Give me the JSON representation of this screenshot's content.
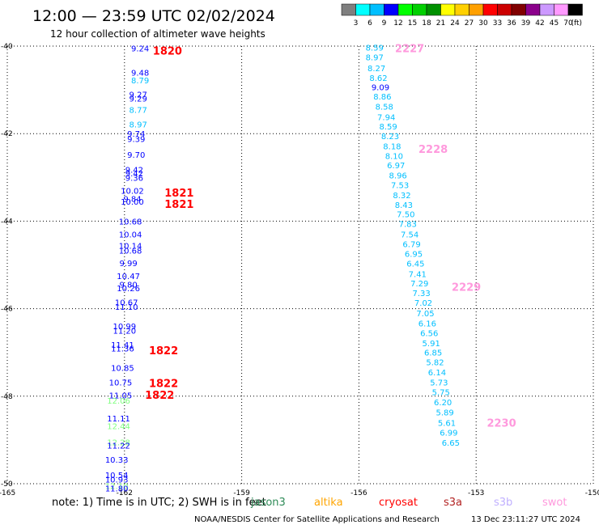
{
  "header": {
    "title": "12:00 — 23:59 UTC 02/02/2024",
    "subtitle": "12 hour collection of altimeter wave heights"
  },
  "colorbar": {
    "colors": [
      "#7f7f7f",
      "#00ffff",
      "#00bfff",
      "#0000ff",
      "#00ff00",
      "#00d000",
      "#009000",
      "#ffff00",
      "#ffd000",
      "#ffa000",
      "#ff0000",
      "#cc0000",
      "#800000",
      "#8b008b",
      "#cc99ff",
      "#ff99ff",
      "#000000"
    ],
    "labels": [
      "3",
      "6",
      "9",
      "12",
      "15",
      "18",
      "21",
      "24",
      "27",
      "30",
      "33",
      "36",
      "39",
      "42",
      "45",
      "70"
    ],
    "unit": "(ft)"
  },
  "footer": {
    "note": "note: 1) Time is in UTC; 2) SWH is in feet",
    "credit": "NOAA/NESDIS Center for Satellite Applications and Research",
    "timestamp": "13 Dec 23:11:27 UTC 2024",
    "legend": [
      {
        "label": "jason3",
        "color": "#2e8b57"
      },
      {
        "label": "altika",
        "color": "#ffa500"
      },
      {
        "label": "cryosat",
        "color": "#ff0000"
      },
      {
        "label": "s3a",
        "color": "#b22222"
      },
      {
        "label": "s3b",
        "color": "#c0b0ff"
      },
      {
        "label": "swot",
        "color": "#ff99dd"
      }
    ]
  },
  "chart_data": {
    "type": "scatter",
    "xlabel": "",
    "ylabel": "",
    "xlim": [
      -165,
      -150
    ],
    "ylim": [
      -50,
      -40
    ],
    "x_ticks": [
      {
        "value": -165,
        "label": "-165"
      },
      {
        "value": -162,
        "label": "-162"
      },
      {
        "value": -159,
        "label": "-159"
      },
      {
        "value": -156,
        "label": "-156"
      },
      {
        "value": -153,
        "label": "-153"
      },
      {
        "value": -150,
        "label": "-150"
      }
    ],
    "y_ticks": [
      {
        "value": -40,
        "label": "-40"
      },
      {
        "value": -42,
        "label": "-42"
      },
      {
        "value": -44,
        "label": "-44"
      },
      {
        "value": -46,
        "label": "-46"
      },
      {
        "value": -48,
        "label": "-48"
      },
      {
        "value": -50,
        "label": "-50"
      }
    ],
    "grid": true,
    "series": [
      {
        "name": "left track",
        "points": [
          {
            "lon": -161.6,
            "lat": -40.05,
            "swh": "9.24",
            "color": "#0000ff"
          },
          {
            "lon": -161.6,
            "lat": -40.6,
            "swh": "9.48",
            "color": "#0000ff"
          },
          {
            "lon": -161.6,
            "lat": -40.78,
            "swh": "8.79",
            "color": "#00bfff"
          },
          {
            "lon": -161.65,
            "lat": -41.1,
            "swh": "9.27",
            "color": "#0000ff"
          },
          {
            "lon": -161.65,
            "lat": -41.19,
            "swh": "9.29",
            "color": "#0000ff"
          },
          {
            "lon": -161.65,
            "lat": -41.45,
            "swh": "8.77",
            "color": "#00bfff"
          },
          {
            "lon": -161.65,
            "lat": -41.78,
            "swh": "8.97",
            "color": "#00bfff"
          },
          {
            "lon": -161.7,
            "lat": -42.0,
            "swh": "9.74",
            "color": "#0000ff"
          },
          {
            "lon": -161.7,
            "lat": -42.12,
            "swh": "9.39",
            "color": "#0000ff"
          },
          {
            "lon": -161.7,
            "lat": -42.48,
            "swh": "9.70",
            "color": "#0000ff"
          },
          {
            "lon": -161.75,
            "lat": -42.82,
            "swh": "9.42",
            "color": "#0000ff"
          },
          {
            "lon": -161.75,
            "lat": -42.9,
            "swh": "9.42",
            "color": "#0000ff"
          },
          {
            "lon": -161.75,
            "lat": -43.0,
            "swh": "9.36",
            "color": "#0000ff"
          },
          {
            "lon": -161.8,
            "lat": -43.3,
            "swh": "10.02",
            "color": "#0000ff"
          },
          {
            "lon": -161.8,
            "lat": -43.55,
            "swh": "10.00",
            "color": "#0000ff"
          },
          {
            "lon": -161.8,
            "lat": -43.48,
            "swh": "9.84",
            "color": "#0000ff"
          },
          {
            "lon": -161.85,
            "lat": -44.0,
            "swh": "10.68",
            "color": "#0000ff"
          },
          {
            "lon": -161.85,
            "lat": -44.3,
            "swh": "10.04",
            "color": "#0000ff"
          },
          {
            "lon": -161.85,
            "lat": -44.56,
            "swh": "10.14",
            "color": "#0000ff"
          },
          {
            "lon": -161.85,
            "lat": -44.67,
            "swh": "10.68",
            "color": "#0000ff"
          },
          {
            "lon": -161.9,
            "lat": -44.95,
            "swh": "9.99",
            "color": "#0000ff"
          },
          {
            "lon": -161.9,
            "lat": -45.25,
            "swh": "10.47",
            "color": "#0000ff"
          },
          {
            "lon": -161.9,
            "lat": -45.44,
            "swh": "9.80",
            "color": "#0000ff"
          },
          {
            "lon": -161.9,
            "lat": -45.53,
            "swh": "10.26",
            "color": "#0000ff"
          },
          {
            "lon": -161.95,
            "lat": -45.85,
            "swh": "10.67",
            "color": "#0000ff"
          },
          {
            "lon": -161.95,
            "lat": -45.95,
            "swh": "11.10",
            "color": "#0000ff"
          },
          {
            "lon": -162.0,
            "lat": -46.4,
            "swh": "10.99",
            "color": "#0000ff"
          },
          {
            "lon": -162.0,
            "lat": -46.5,
            "swh": "11.20",
            "color": "#0000ff"
          },
          {
            "lon": -162.05,
            "lat": -46.82,
            "swh": "11.41",
            "color": "#0000ff"
          },
          {
            "lon": -162.05,
            "lat": -46.9,
            "swh": "11.36",
            "color": "#0000ff"
          },
          {
            "lon": -162.05,
            "lat": -47.35,
            "swh": "10.85",
            "color": "#0000ff"
          },
          {
            "lon": -162.1,
            "lat": -47.68,
            "swh": "10.75",
            "color": "#0000ff"
          },
          {
            "lon": -162.1,
            "lat": -47.98,
            "swh": "11.05",
            "color": "#0000ff"
          },
          {
            "lon": -162.15,
            "lat": -48.1,
            "swh": "12.06",
            "color": "#80ff80"
          },
          {
            "lon": -162.15,
            "lat": -48.5,
            "swh": "11.11",
            "color": "#0000ff"
          },
          {
            "lon": -162.15,
            "lat": -48.68,
            "swh": "12.44",
            "color": "#80ff80"
          },
          {
            "lon": -162.15,
            "lat": -49.05,
            "swh": "12.28",
            "color": "#80ff80"
          },
          {
            "lon": -162.15,
            "lat": -49.12,
            "swh": "11.22",
            "color": "#0000ff"
          },
          {
            "lon": -162.2,
            "lat": -49.45,
            "swh": "10.33",
            "color": "#0000ff"
          },
          {
            "lon": -162.2,
            "lat": -49.8,
            "swh": "10.54",
            "color": "#0000ff"
          },
          {
            "lon": -162.2,
            "lat": -49.9,
            "swh": "10.93",
            "color": "#0000ff"
          },
          {
            "lon": -162.2,
            "lat": -50.05,
            "swh": "12.10",
            "color": "#80ff80"
          },
          {
            "lon": -162.2,
            "lat": -50.1,
            "swh": "11.80",
            "color": "#0000ff"
          }
        ]
      },
      {
        "name": "right track",
        "points": [
          {
            "lon": -155.6,
            "lat": -40.03,
            "swh": "8.59",
            "color": "#00bfff"
          },
          {
            "lon": -155.6,
            "lat": -40.25,
            "swh": "8.97",
            "color": "#00bfff"
          },
          {
            "lon": -155.55,
            "lat": -40.5,
            "swh": "8.27",
            "color": "#00bfff"
          },
          {
            "lon": -155.5,
            "lat": -40.72,
            "swh": "8.62",
            "color": "#00bfff"
          },
          {
            "lon": -155.45,
            "lat": -40.93,
            "swh": "9.09",
            "color": "#0000ff"
          },
          {
            "lon": -155.4,
            "lat": -41.15,
            "swh": "8.86",
            "color": "#00bfff"
          },
          {
            "lon": -155.35,
            "lat": -41.38,
            "swh": "8.58",
            "color": "#00bfff"
          },
          {
            "lon": -155.3,
            "lat": -41.62,
            "swh": "7.94",
            "color": "#00bfff"
          },
          {
            "lon": -155.25,
            "lat": -41.83,
            "swh": "8.59",
            "color": "#00bfff"
          },
          {
            "lon": -155.2,
            "lat": -42.05,
            "swh": "8.23",
            "color": "#00bfff"
          },
          {
            "lon": -155.15,
            "lat": -42.28,
            "swh": "8.18",
            "color": "#00bfff"
          },
          {
            "lon": -155.1,
            "lat": -42.5,
            "swh": "8.10",
            "color": "#00bfff"
          },
          {
            "lon": -155.05,
            "lat": -42.72,
            "swh": "6.97",
            "color": "#00bfff"
          },
          {
            "lon": -155.0,
            "lat": -42.95,
            "swh": "8.96",
            "color": "#00bfff"
          },
          {
            "lon": -154.95,
            "lat": -43.17,
            "swh": "7.53",
            "color": "#00bfff"
          },
          {
            "lon": -154.9,
            "lat": -43.4,
            "swh": "8.32",
            "color": "#00bfff"
          },
          {
            "lon": -154.85,
            "lat": -43.62,
            "swh": "8.43",
            "color": "#00bfff"
          },
          {
            "lon": -154.8,
            "lat": -43.84,
            "swh": "7.50",
            "color": "#00bfff"
          },
          {
            "lon": -154.75,
            "lat": -44.06,
            "swh": "7.83",
            "color": "#00bfff"
          },
          {
            "lon": -154.7,
            "lat": -44.3,
            "swh": "7.54",
            "color": "#00bfff"
          },
          {
            "lon": -154.65,
            "lat": -44.52,
            "swh": "6.79",
            "color": "#00bfff"
          },
          {
            "lon": -154.6,
            "lat": -44.74,
            "swh": "6.95",
            "color": "#00bfff"
          },
          {
            "lon": -154.55,
            "lat": -44.96,
            "swh": "6.45",
            "color": "#00bfff"
          },
          {
            "lon": -154.5,
            "lat": -45.2,
            "swh": "7.41",
            "color": "#00bfff"
          },
          {
            "lon": -154.45,
            "lat": -45.42,
            "swh": "7.29",
            "color": "#00bfff"
          },
          {
            "lon": -154.4,
            "lat": -45.64,
            "swh": "7.33",
            "color": "#00bfff"
          },
          {
            "lon": -154.35,
            "lat": -45.86,
            "swh": "7.02",
            "color": "#00bfff"
          },
          {
            "lon": -154.3,
            "lat": -46.1,
            "swh": "7.05",
            "color": "#00bfff"
          },
          {
            "lon": -154.25,
            "lat": -46.33,
            "swh": "6.16",
            "color": "#00bfff"
          },
          {
            "lon": -154.2,
            "lat": -46.55,
            "swh": "6.56",
            "color": "#00bfff"
          },
          {
            "lon": -154.15,
            "lat": -46.78,
            "swh": "5.91",
            "color": "#00bfff"
          },
          {
            "lon": -154.1,
            "lat": -47.0,
            "swh": "6.85",
            "color": "#00bfff"
          },
          {
            "lon": -154.05,
            "lat": -47.22,
            "swh": "5.82",
            "color": "#00bfff"
          },
          {
            "lon": -154.0,
            "lat": -47.45,
            "swh": "6.14",
            "color": "#00bfff"
          },
          {
            "lon": -153.95,
            "lat": -47.68,
            "swh": "5.73",
            "color": "#00bfff"
          },
          {
            "lon": -153.9,
            "lat": -47.9,
            "swh": "5.75",
            "color": "#00bfff"
          },
          {
            "lon": -153.85,
            "lat": -48.13,
            "swh": "6.20",
            "color": "#00bfff"
          },
          {
            "lon": -153.8,
            "lat": -48.36,
            "swh": "5.89",
            "color": "#00bfff"
          },
          {
            "lon": -153.75,
            "lat": -48.6,
            "swh": "5.61",
            "color": "#00bfff"
          },
          {
            "lon": -153.7,
            "lat": -48.83,
            "swh": "6.99",
            "color": "#00bfff"
          },
          {
            "lon": -153.65,
            "lat": -49.06,
            "swh": "6.65",
            "color": "#00bfff"
          }
        ]
      }
    ],
    "time_labels": [
      {
        "text": "1820",
        "lon": -160.9,
        "lat": -40.1,
        "color": "#ff0000"
      },
      {
        "text": "1821",
        "lon": -160.6,
        "lat": -43.35,
        "color": "#ff0000"
      },
      {
        "text": "1821",
        "lon": -160.6,
        "lat": -43.6,
        "color": "#ff0000"
      },
      {
        "text": "1822",
        "lon": -161.0,
        "lat": -46.95,
        "color": "#ff0000"
      },
      {
        "text": "1822",
        "lon": -161.0,
        "lat": -47.7,
        "color": "#ff0000"
      },
      {
        "text": "1822",
        "lon": -161.1,
        "lat": -47.97,
        "color": "#ff0000"
      },
      {
        "text": "2227",
        "lon": -154.7,
        "lat": -40.05,
        "color": "#ff99dd"
      },
      {
        "text": "2228",
        "lon": -154.1,
        "lat": -42.35,
        "color": "#ff99dd"
      },
      {
        "text": "2229",
        "lon": -153.25,
        "lat": -45.5,
        "color": "#ff99dd"
      },
      {
        "text": "2230",
        "lon": -152.35,
        "lat": -48.6,
        "color": "#ff99dd"
      }
    ]
  }
}
